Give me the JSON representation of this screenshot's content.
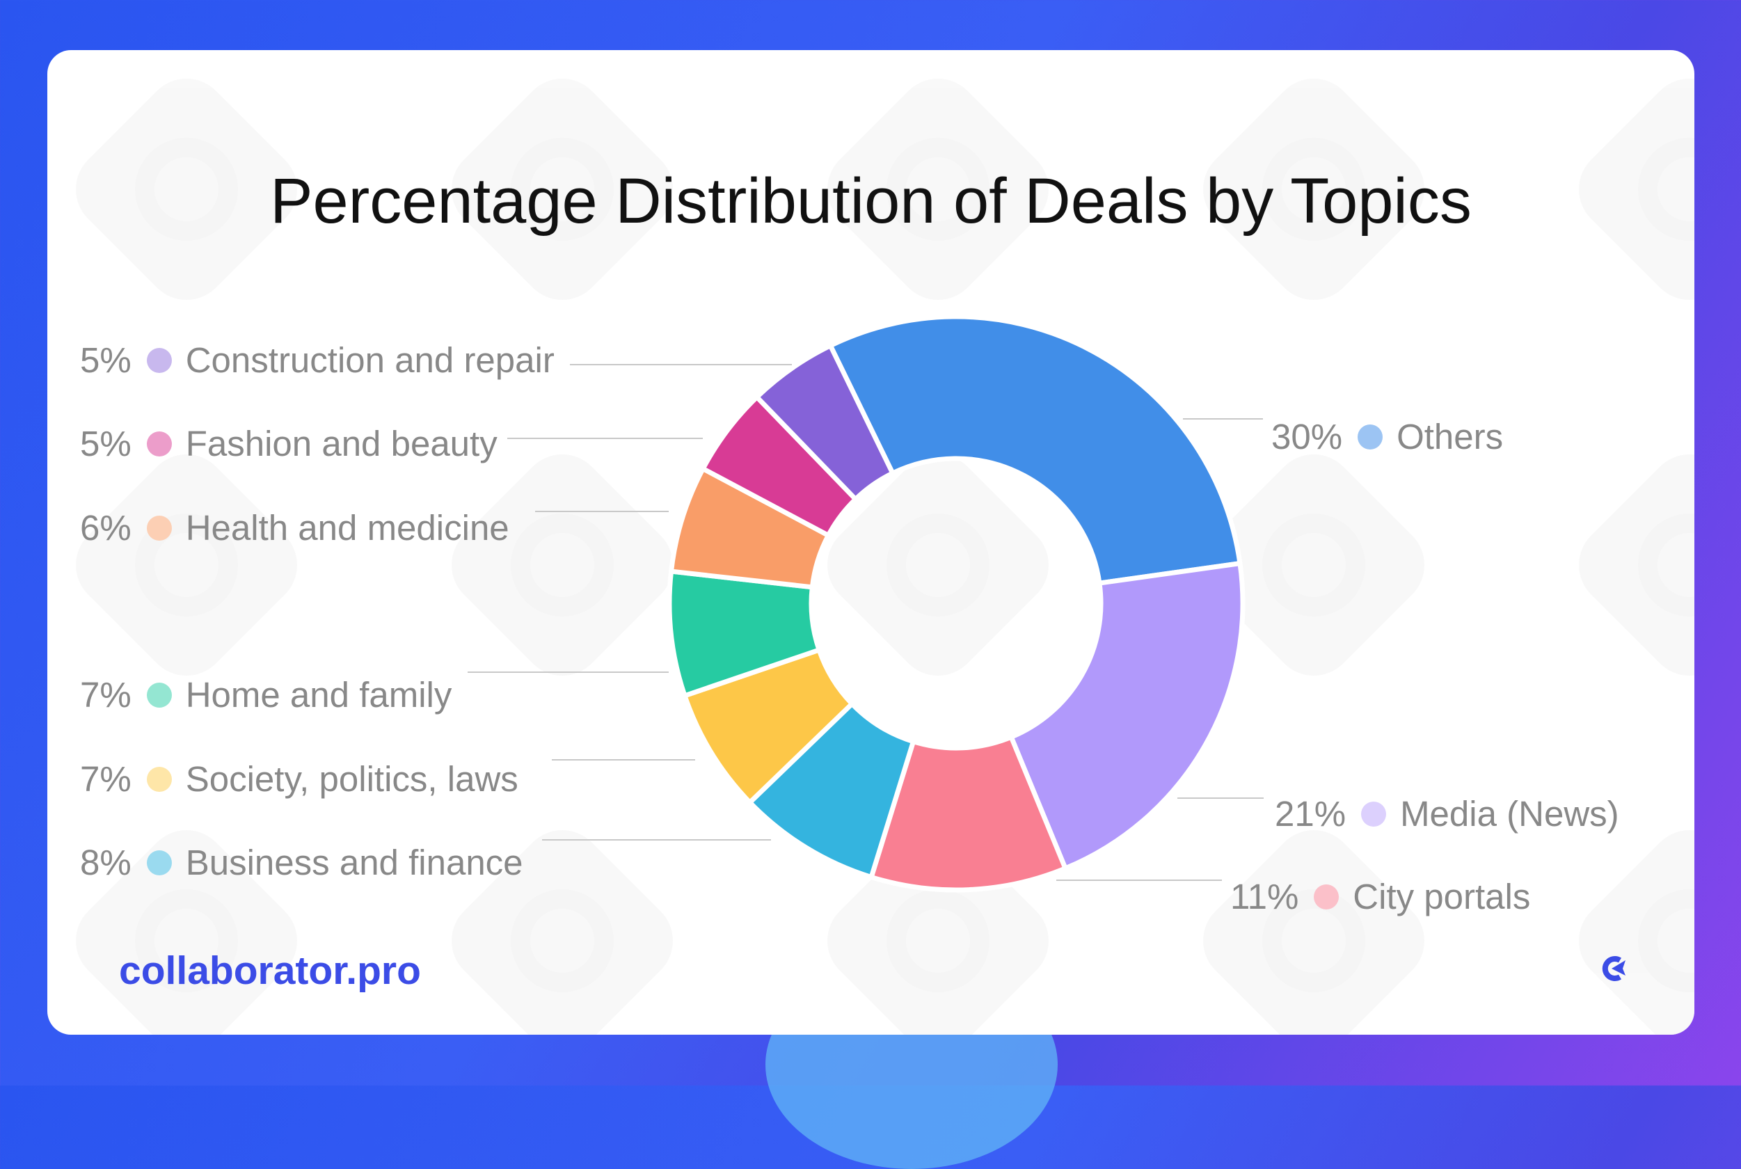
{
  "chart_data": {
    "type": "pie",
    "variant": "donut",
    "title": "Percentage Distribution of Deals by Topics",
    "slices": [
      {
        "label": "Others",
        "value": 30,
        "color": "#418EE8",
        "dot": "#9CC4F3"
      },
      {
        "label": "Media (News)",
        "value": 21,
        "color": "#B199FB",
        "dot": "#DCD0FD"
      },
      {
        "label": "City portals",
        "value": 11,
        "color": "#F97F92",
        "dot": "#FBC0C9"
      },
      {
        "label": "Business and finance",
        "value": 8,
        "color": "#34B4DF",
        "dot": "#9ADAEF"
      },
      {
        "label": "Society, politics, laws",
        "value": 7,
        "color": "#FDC748",
        "dot": "#FEE6A8"
      },
      {
        "label": "Home and family",
        "value": 7,
        "color": "#26CBA2",
        "dot": "#94E6D2"
      },
      {
        "label": "Health and medicine",
        "value": 6,
        "color": "#F99D68",
        "dot": "#FCCFB4"
      },
      {
        "label": "Fashion and beauty",
        "value": 5,
        "color": "#D83B95",
        "dot": "#EC9DCA"
      },
      {
        "label": "Construction and repair",
        "value": 5,
        "color": "#8562D8",
        "dot": "#C8B8EE"
      }
    ],
    "value_labels": [
      "30%",
      "21%",
      "11%",
      "8%",
      "7%",
      "7%",
      "6%",
      "5%",
      "5%"
    ]
  },
  "brand": {
    "text": "collaborator.pro",
    "color": "#3B4CE6"
  }
}
